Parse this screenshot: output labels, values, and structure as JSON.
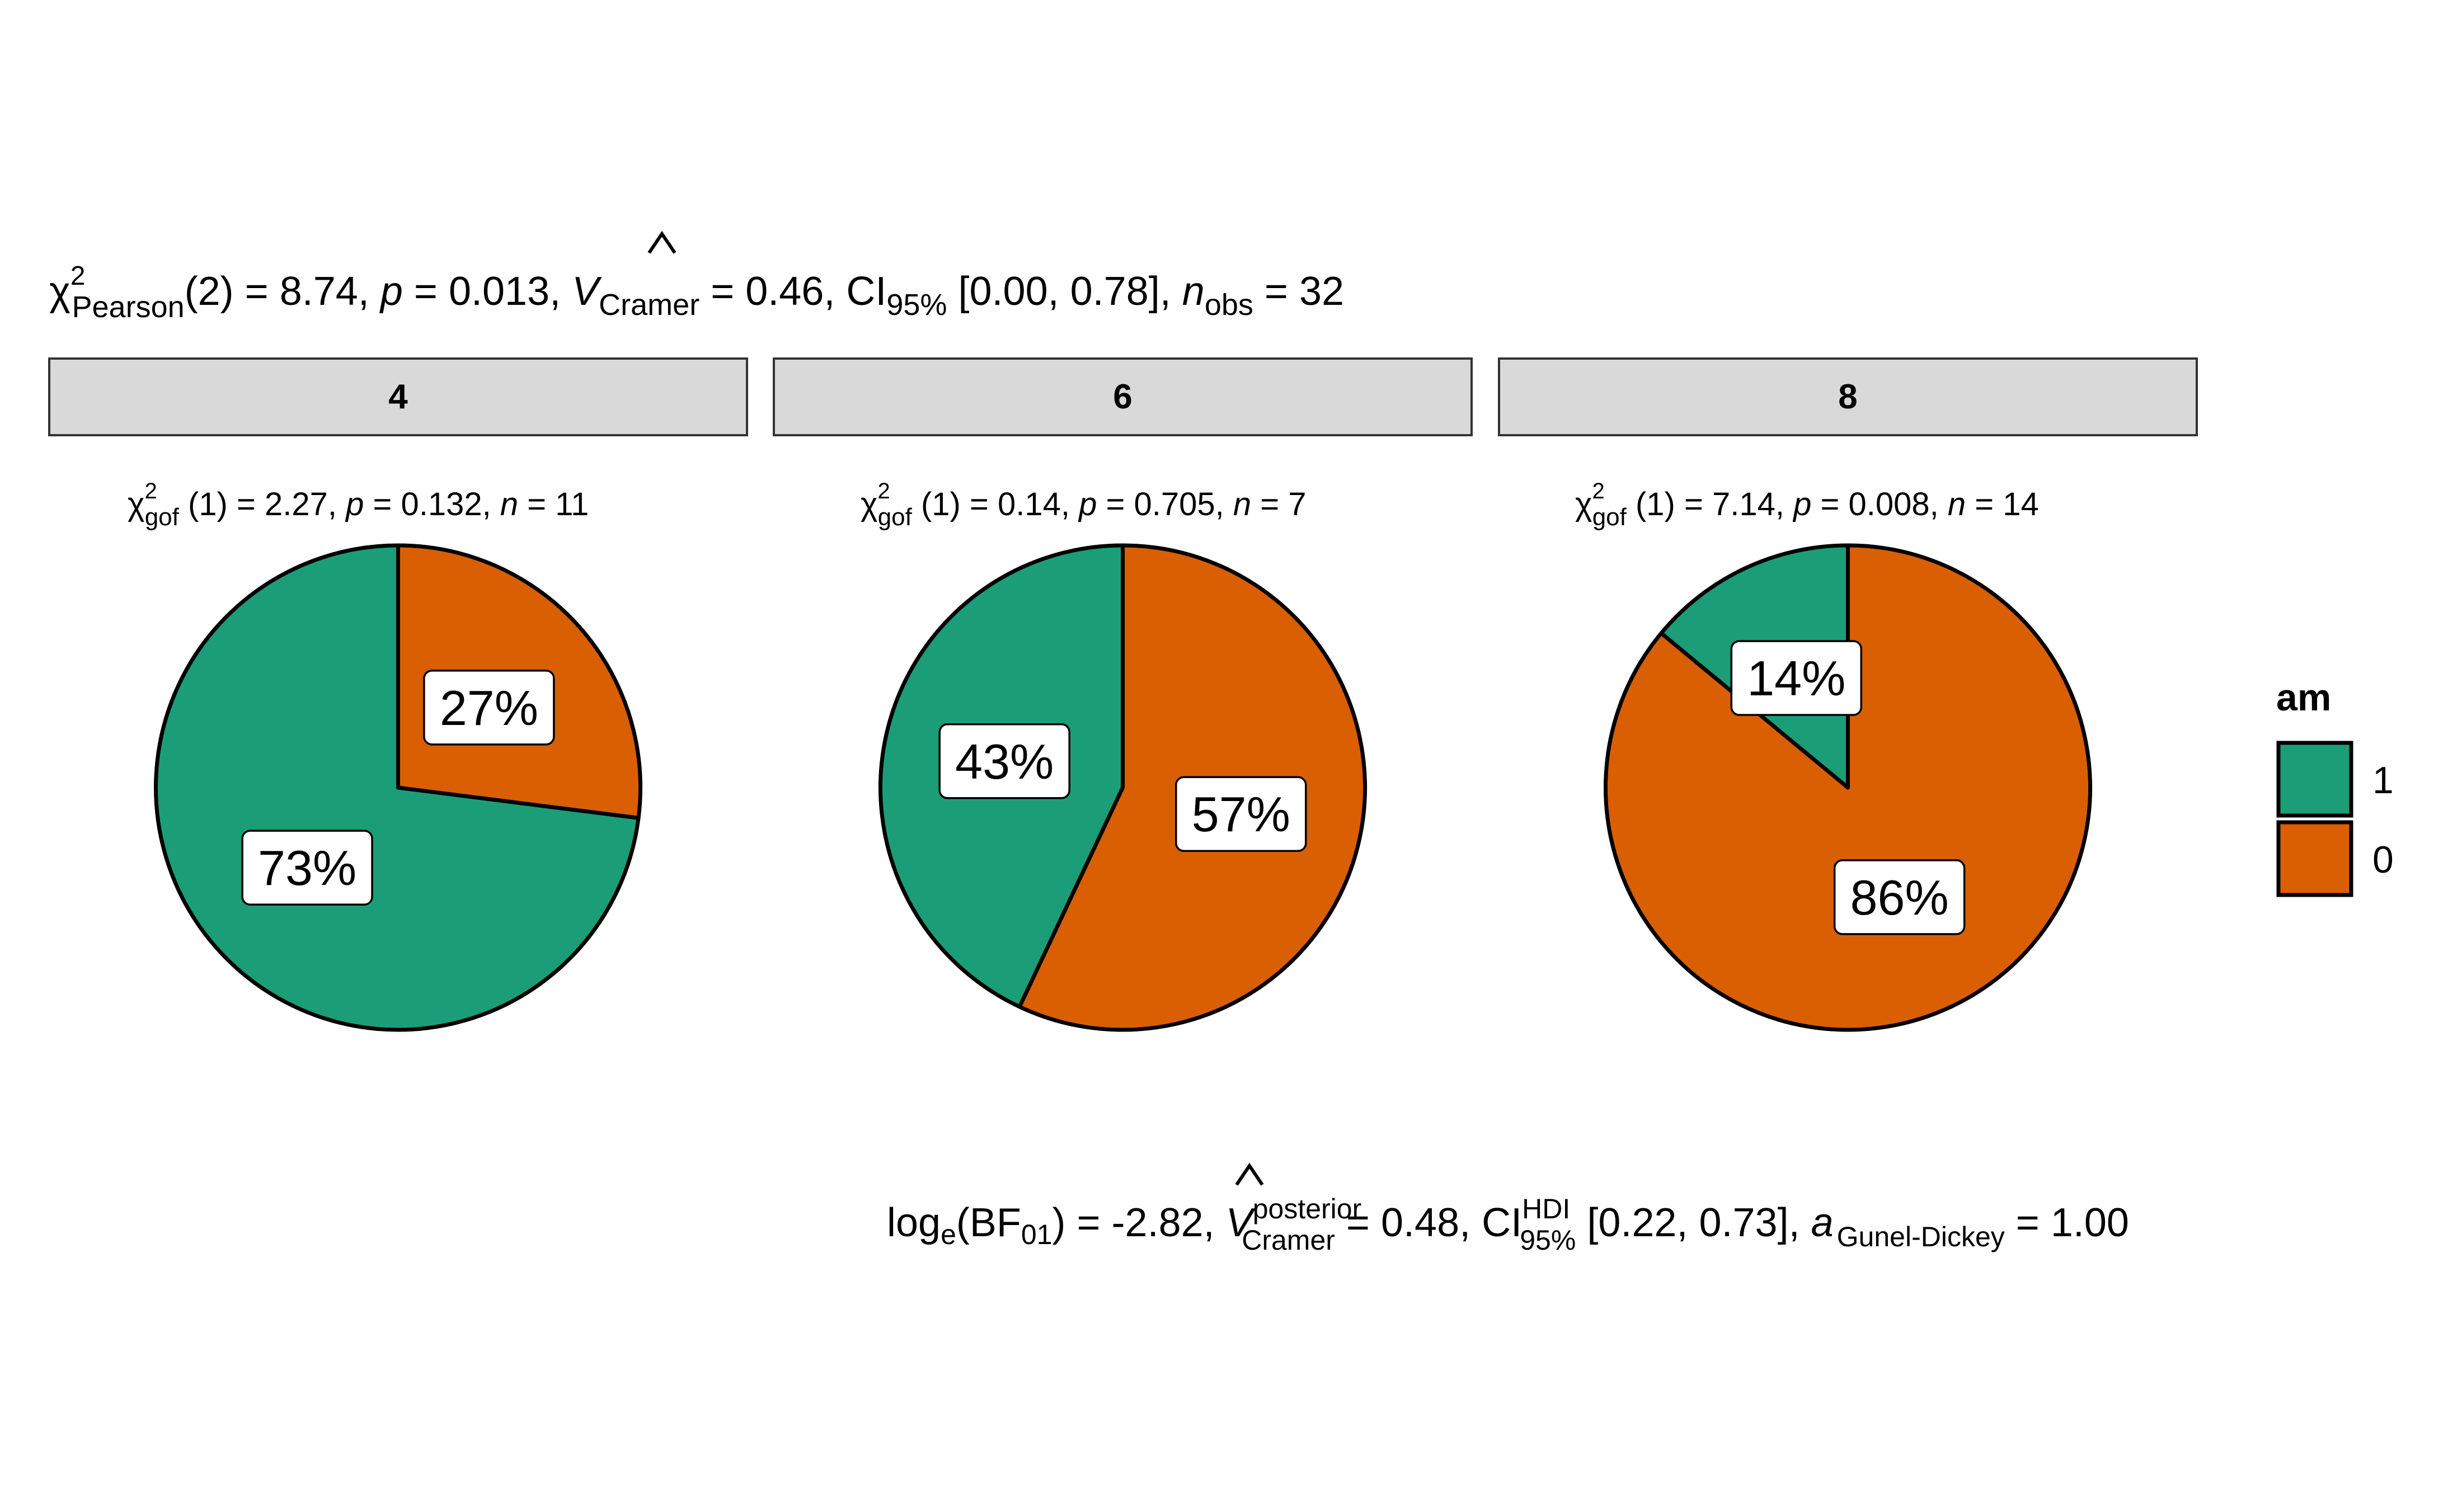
{
  "chart_data": {
    "type": "pie",
    "title": {
      "chi": "χ",
      "chi_sup": "2",
      "chi_sub": "Pearson",
      "part1": "(2) = 8.74, ",
      "p_symbol": "p",
      "part2": " = 0.013, ",
      "v_symbol": "V",
      "v_sub": "Cramer",
      "part3": " = 0.46, CI",
      "ci_sub": "95%",
      "part4": " [0.00, 0.78], ",
      "n_symbol": "n",
      "n_sub": "obs",
      "part5": " = 32"
    },
    "caption": {
      "log": "log",
      "log_sub": "e",
      "bf_open": "(BF",
      "bf_sub": "01",
      "part1": ") = -2.82, ",
      "v_symbol": "V",
      "v_sup": "posterior",
      "v_sub": "Cramer",
      "part2": " = 0.48, CI",
      "ci_sup": "HDI",
      "ci_sub": "95%",
      "part3": " [0.22, 0.73], ",
      "a_symbol": "a",
      "a_sub": "Gunel-Dickey",
      "part4": " = 1.00"
    },
    "legend": {
      "title": "am",
      "entries": [
        {
          "label": "1",
          "color": "#1b9e77"
        },
        {
          "label": "0",
          "color": "#d95f02"
        }
      ],
      "position": "right"
    },
    "panels": [
      {
        "facet": "4",
        "subtitle": {
          "chi": "χ",
          "chi_sup": "2",
          "chi_sub": "gof",
          "part1": " (1) = 2.27,  ",
          "p_symbol": "p",
          "part2": " = 0.132,  ",
          "n_symbol": "n",
          "part3": " = 11"
        },
        "slices": [
          {
            "category": "1",
            "value": 73,
            "label": "73%"
          },
          {
            "category": "0",
            "value": 27,
            "label": "27%"
          }
        ]
      },
      {
        "facet": "6",
        "subtitle": {
          "chi": "χ",
          "chi_sup": "2",
          "chi_sub": "gof",
          "part1": " (1) = 0.14,  ",
          "p_symbol": "p",
          "part2": " = 0.705,  ",
          "n_symbol": "n",
          "part3": " = 7"
        },
        "slices": [
          {
            "category": "1",
            "value": 43,
            "label": "43%"
          },
          {
            "category": "0",
            "value": 57,
            "label": "57%"
          }
        ]
      },
      {
        "facet": "8",
        "subtitle": {
          "chi": "χ",
          "chi_sup": "2",
          "chi_sub": "gof",
          "part1": " (1) = 7.14,  ",
          "p_symbol": "p",
          "part2": " = 0.008,  ",
          "n_symbol": "n",
          "part3": " = 14"
        },
        "slices": [
          {
            "category": "1",
            "value": 14,
            "label": "14%"
          },
          {
            "category": "0",
            "value": 86,
            "label": "86%"
          }
        ]
      }
    ]
  }
}
